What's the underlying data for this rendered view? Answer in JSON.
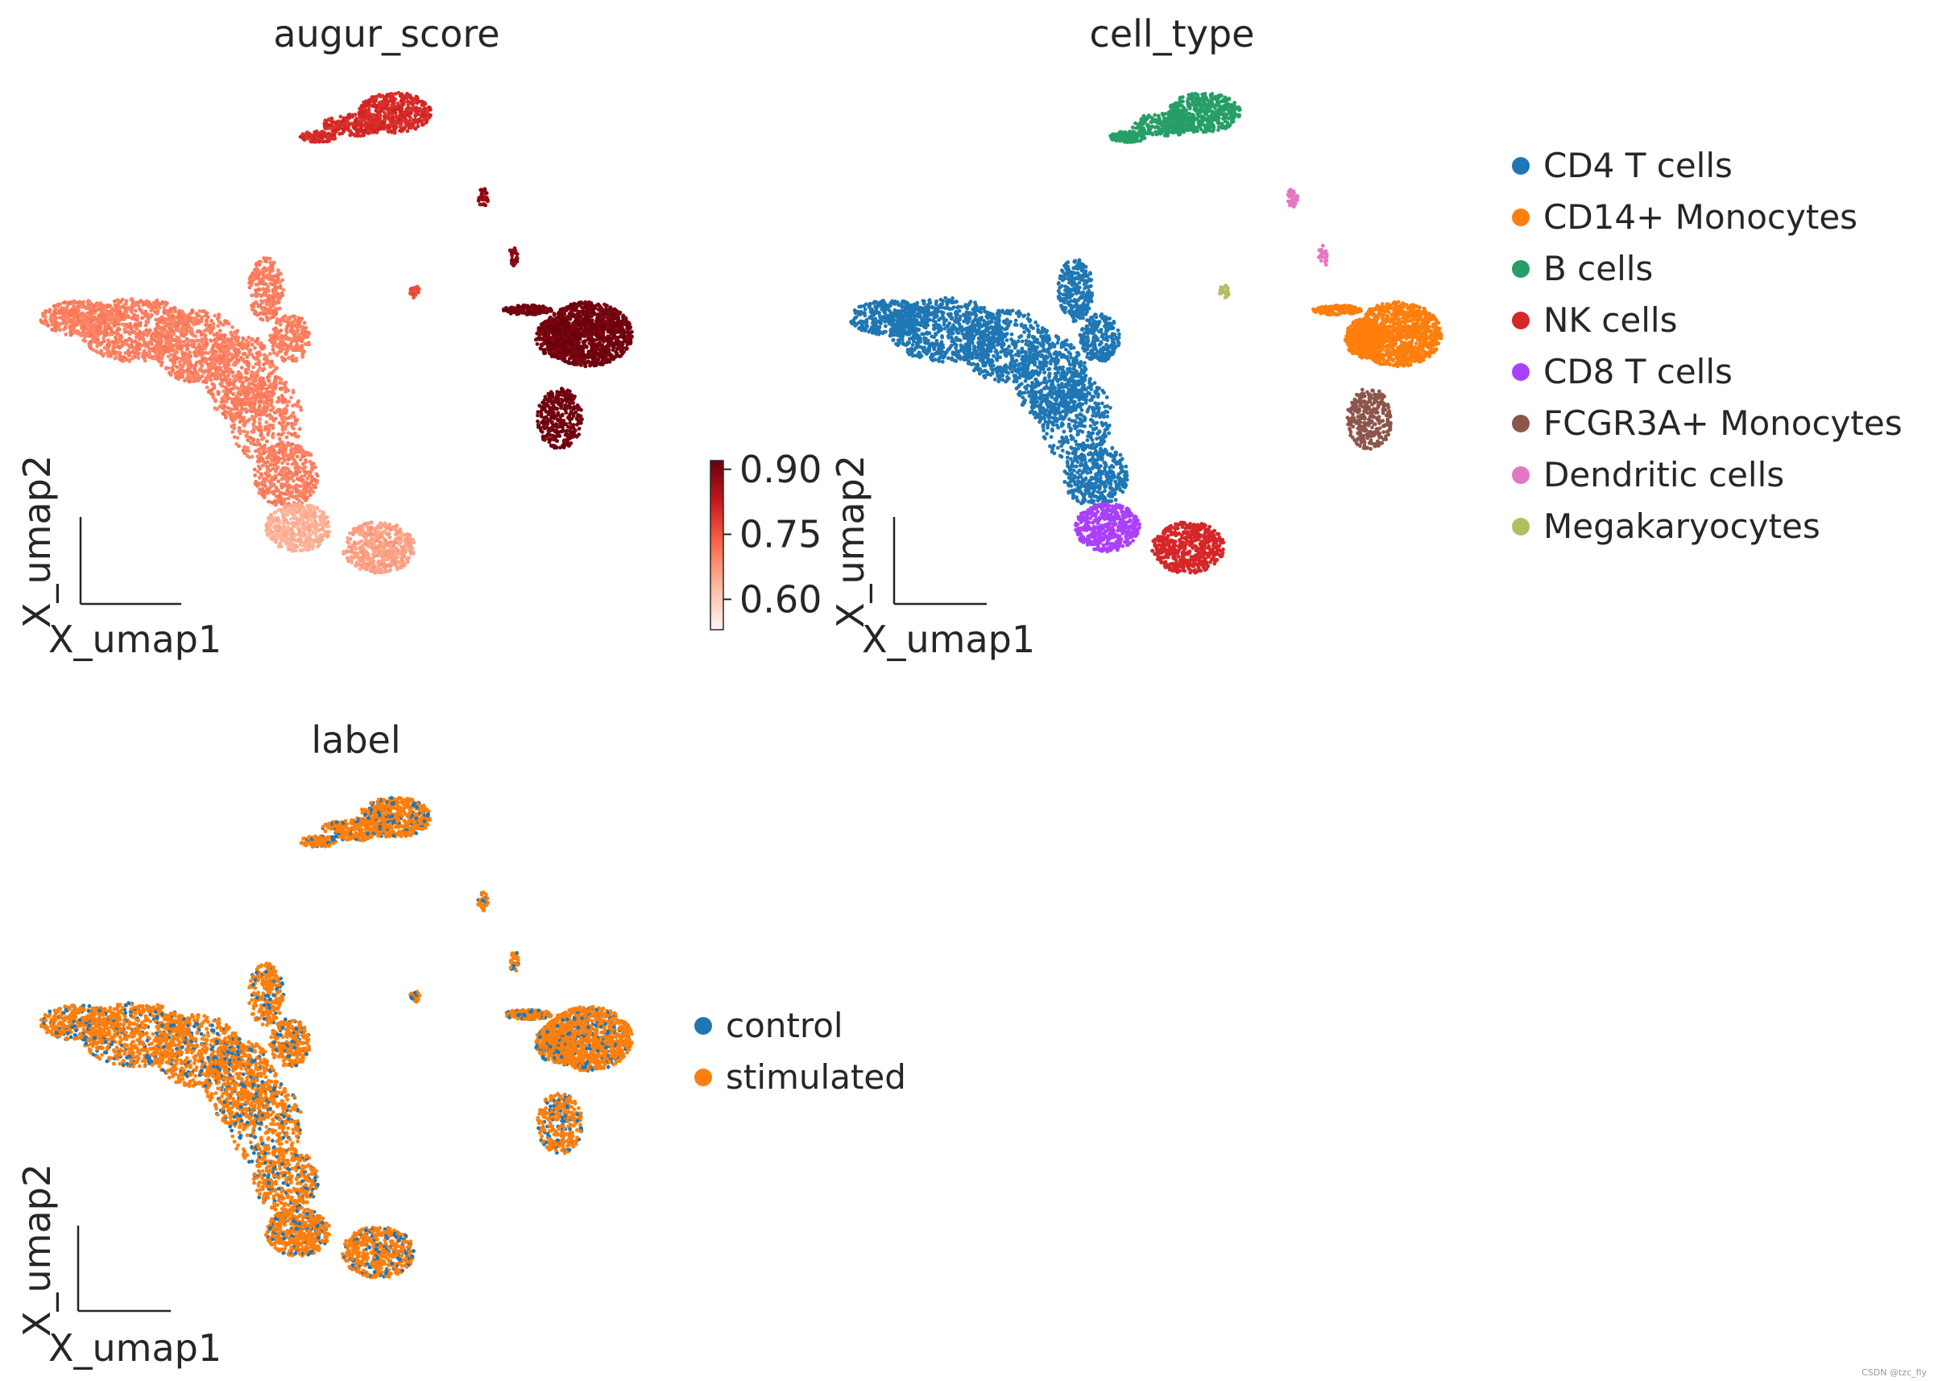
{
  "chart_data": [
    {
      "type": "scatter",
      "id": "augur",
      "title": "augur_score",
      "xlabel": "X_umap1",
      "ylabel": "X_umap2",
      "color_by": "continuous",
      "colorbar": {
        "ticks": [
          0.6,
          0.75,
          0.9
        ],
        "tick_labels": [
          "0.60",
          "0.75",
          "0.90"
        ],
        "range": [
          0.53,
          0.92
        ],
        "colormap": [
          "#fff5f0",
          "#fcbba1",
          "#fb6a4a",
          "#cb181d",
          "#67000d"
        ]
      },
      "clusters": [
        {
          "name": "CD4 T cells",
          "value": 0.7
        },
        {
          "name": "CD14+ Monocytes",
          "value": 0.91
        },
        {
          "name": "B cells",
          "value": 0.8
        },
        {
          "name": "NK cells",
          "value": 0.66
        },
        {
          "name": "CD8 T cells",
          "value": 0.64
        },
        {
          "name": "FCGR3A+ Monocytes",
          "value": 0.91
        },
        {
          "name": "Dendritic cells",
          "value": 0.88
        },
        {
          "name": "Megakaryocytes",
          "value": 0.76
        }
      ]
    },
    {
      "type": "scatter",
      "id": "celltype",
      "title": "cell_type",
      "xlabel": "X_umap1",
      "ylabel": "X_umap2",
      "color_by": "categorical",
      "legend_position": "right",
      "legend": [
        {
          "label": "CD4 T cells",
          "color": "#1f77b4"
        },
        {
          "label": "CD14+ Monocytes",
          "color": "#ff7f0e"
        },
        {
          "label": "B cells",
          "color": "#279e68"
        },
        {
          "label": "NK cells",
          "color": "#d62728"
        },
        {
          "label": "CD8 T cells",
          "color": "#aa40fc"
        },
        {
          "label": "FCGR3A+ Monocytes",
          "color": "#8c564b"
        },
        {
          "label": "Dendritic cells",
          "color": "#e377c2"
        },
        {
          "label": "Megakaryocytes",
          "color": "#b5bd61"
        }
      ]
    },
    {
      "type": "scatter",
      "id": "label",
      "title": "label",
      "xlabel": "X_umap1",
      "ylabel": "X_umap2",
      "color_by": "categorical",
      "legend_position": "right",
      "legend": [
        {
          "label": "control",
          "color": "#1f77b4"
        },
        {
          "label": "stimulated",
          "color": "#ff7f0e"
        }
      ]
    }
  ],
  "watermark": "CSDN @tzc_fly"
}
